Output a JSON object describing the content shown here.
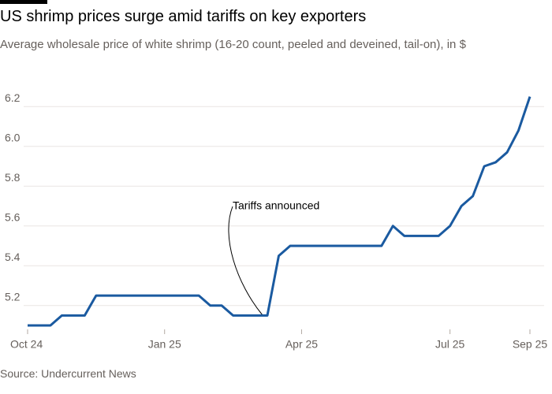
{
  "chart_data": {
    "type": "line",
    "title": "US shrimp prices surge amid tariffs on key exporters",
    "subtitle": "Average wholesale price of white shrimp (16-20 count, peeled and deveined, tail-on), in $",
    "source": "Source: Undercurrent News",
    "annotation": "Tariffs announced",
    "categories": [
      "Oct 24",
      null,
      null,
      null,
      null,
      null,
      null,
      null,
      null,
      null,
      null,
      null,
      "Jan 25",
      null,
      null,
      null,
      null,
      null,
      null,
      null,
      null,
      null,
      null,
      null,
      "Apr 25",
      null,
      null,
      null,
      null,
      null,
      null,
      null,
      null,
      null,
      null,
      null,
      null,
      "Jul 25",
      null,
      null,
      null,
      null,
      null,
      null,
      "Sep 25"
    ],
    "series": [
      {
        "name": "Price",
        "color": "#1a5aa0",
        "values": [
          5.1,
          5.1,
          5.1,
          5.15,
          5.15,
          5.15,
          5.25,
          5.25,
          5.25,
          5.25,
          5.25,
          5.25,
          5.25,
          5.25,
          5.25,
          5.25,
          5.2,
          5.2,
          5.15,
          5.15,
          5.15,
          5.15,
          5.45,
          5.5,
          5.5,
          5.5,
          5.5,
          5.5,
          5.5,
          5.5,
          5.5,
          5.5,
          5.6,
          5.55,
          5.55,
          5.55,
          5.55,
          5.6,
          5.7,
          5.75,
          5.9,
          5.92,
          5.97,
          6.08,
          6.25
        ]
      }
    ],
    "ylim": [
      5.08,
      6.3
    ],
    "yticks": [
      5.2,
      5.4,
      5.6,
      5.8,
      {
        "value": 6,
        "label": "6.0"
      },
      6.2
    ],
    "grid": true
  }
}
